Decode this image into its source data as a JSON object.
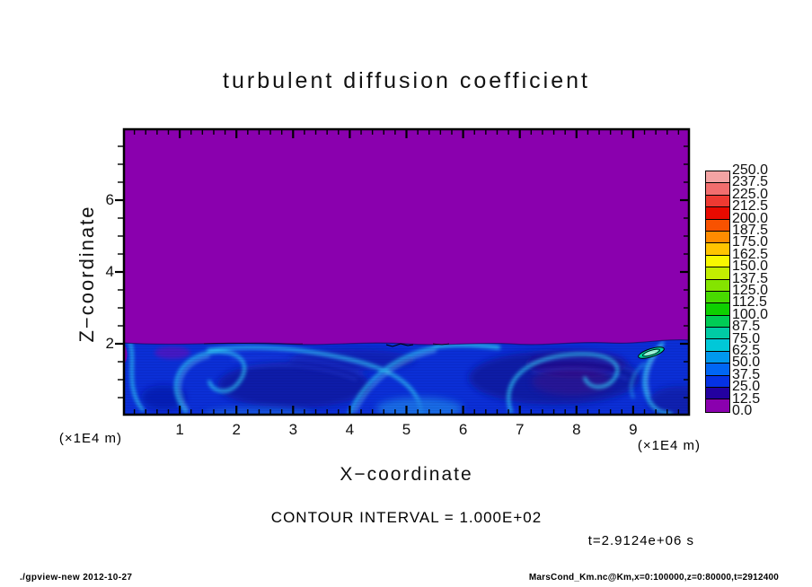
{
  "title": "turbulent diffusion coefficient",
  "axes": {
    "x": {
      "label": "X−coordinate",
      "unit": "(×1E4 m)",
      "range": [
        0,
        10
      ],
      "major_ticks": [
        1,
        2,
        3,
        4,
        5,
        6,
        7,
        8,
        9
      ],
      "minor_step": 0.2
    },
    "z": {
      "label": "Z−coordinate",
      "unit": "(×1E4 m)",
      "range": [
        0,
        8
      ],
      "major_ticks": [
        2,
        4,
        6
      ],
      "minor_step": 0.5
    }
  },
  "colorbar": {
    "labels_top_to_bottom": [
      "250.0",
      "237.5",
      "225.0",
      "212.5",
      "200.0",
      "187.5",
      "175.0",
      "162.5",
      "150.0",
      "137.5",
      "125.0",
      "112.5",
      "100.0",
      "87.5",
      "75.0",
      "62.5",
      "50.0",
      "37.5",
      "25.0",
      "12.5",
      "0.0"
    ],
    "cell_colors_top_to_bottom": [
      "#f4a4a4",
      "#f26e6e",
      "#ee3a32",
      "#e80a00",
      "#f85200",
      "#ff8c00",
      "#ffc400",
      "#f8f800",
      "#c2ee00",
      "#84e400",
      "#48da00",
      "#0ed000",
      "#00cc55",
      "#00cba4",
      "#00c8d8",
      "#0098ee",
      "#0066f4",
      "#0532e4",
      "#2300a0",
      "#8a00ae"
    ]
  },
  "annotations": {
    "contour_interval": "CONTOUR INTERVAL = 1.000E+02",
    "time": "t=2.9124e+06 s"
  },
  "footer": {
    "left": "./gpview-new  2012-10-27",
    "right": "MarsCond_Km.nc@Km,x=0:100000,z=0:80000,t=2912400"
  },
  "colors": {
    "field_min_purple": "#8a00ae",
    "band_base_blue": "#0b2fd6",
    "frame": "#000000",
    "background": "#ffffff"
  },
  "chart_data": {
    "type": "heatmap",
    "title": "turbulent diffusion coefficient",
    "xlabel": "X−coordinate (×1E4 m)",
    "ylabel": "Z−coordinate (×1E4 m)",
    "xlim": [
      0,
      10
    ],
    "ylim": [
      0,
      8
    ],
    "colorbar_min": 0.0,
    "colorbar_max": 250.0,
    "colorbar_step": 12.5,
    "contour_interval": 100.0,
    "time_seconds": 2912400,
    "legend_position": "right",
    "grid": false,
    "field_summary": {
      "upper_region": "z > ~2 (x1E4 m): uniform minimum value in lowest bin 0-12.5 (purple)",
      "boundary_layer": "z < ~2 (x1E4 m): turbulent eddies and cyan filaments, mostly ~12.5-75 with bright streaks up to ~100-150",
      "interface_height_1e4m": 2.0,
      "closed_100_contour_locations_1e4m": [
        [
          9.15,
          1.75
        ],
        [
          4.7,
          2.0
        ]
      ]
    },
    "approx_grid": {
      "x_1e4m": [
        0.5,
        1.5,
        2.5,
        3.5,
        4.5,
        5.5,
        6.5,
        7.5,
        8.5,
        9.5
      ],
      "z_1e4m": [
        0.5,
        1.0,
        1.5,
        2.5,
        4.0,
        6.0,
        7.5
      ],
      "values_rows_match_z": [
        [
          45,
          55,
          40,
          50,
          65,
          50,
          40,
          35,
          50,
          60
        ],
        [
          50,
          40,
          35,
          45,
          60,
          55,
          45,
          40,
          55,
          70
        ],
        [
          40,
          60,
          30,
          35,
          55,
          45,
          35,
          30,
          65,
          55
        ],
        [
          5,
          5,
          5,
          5,
          5,
          5,
          5,
          5,
          5,
          5
        ],
        [
          5,
          5,
          5,
          5,
          5,
          5,
          5,
          5,
          5,
          5
        ],
        [
          5,
          5,
          5,
          5,
          5,
          5,
          5,
          5,
          5,
          5
        ],
        [
          5,
          5,
          5,
          5,
          5,
          5,
          5,
          5,
          5,
          5
        ]
      ]
    }
  }
}
